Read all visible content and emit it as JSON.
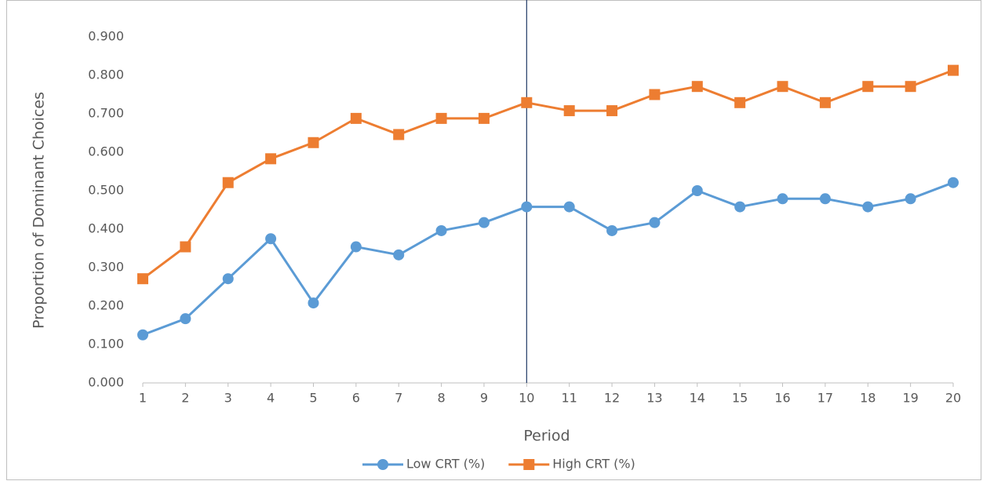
{
  "chart_data": {
    "type": "line",
    "x_label": "Period",
    "y_label": "Proportion of Dominant Choices",
    "categories": [
      "1",
      "2",
      "3",
      "4",
      "5",
      "6",
      "7",
      "8",
      "9",
      "10",
      "11",
      "12",
      "13",
      "14",
      "15",
      "16",
      "17",
      "18",
      "19",
      "20"
    ],
    "series": [
      {
        "name": "Low CRT (%)",
        "color": "#5b9bd5",
        "marker": "circle",
        "values": [
          0.125,
          0.167,
          0.271,
          0.375,
          0.208,
          0.354,
          0.333,
          0.396,
          0.417,
          0.458,
          0.458,
          0.396,
          0.417,
          0.5,
          0.458,
          0.479,
          0.479,
          0.458,
          0.479,
          0.521
        ]
      },
      {
        "name": "High CRT (%)",
        "color": "#ed7d31",
        "marker": "square",
        "values": [
          0.271,
          0.354,
          0.521,
          0.583,
          0.625,
          0.688,
          0.646,
          0.688,
          0.688,
          0.729,
          0.708,
          0.708,
          0.75,
          0.771,
          0.729,
          0.771,
          0.729,
          0.771,
          0.771,
          0.813
        ]
      }
    ],
    "ylim": [
      0,
      0.9
    ],
    "yticks": [
      {
        "value": 0,
        "label": "0.000"
      },
      {
        "value": 0.1,
        "label": "0.100"
      },
      {
        "value": 0.2,
        "label": "0.200"
      },
      {
        "value": 0.3,
        "label": "0.300"
      },
      {
        "value": 0.4,
        "label": "0.400"
      },
      {
        "value": 0.5,
        "label": "0.500"
      },
      {
        "value": 0.6,
        "label": "0.600"
      },
      {
        "value": 0.7,
        "label": "0.700"
      },
      {
        "value": 0.8,
        "label": "0.800"
      },
      {
        "value": 0.9,
        "label": "0.900"
      }
    ],
    "grid": false,
    "reference_line_category": "10",
    "reference_line_color": "#1f3864",
    "legend": "bottom"
  }
}
